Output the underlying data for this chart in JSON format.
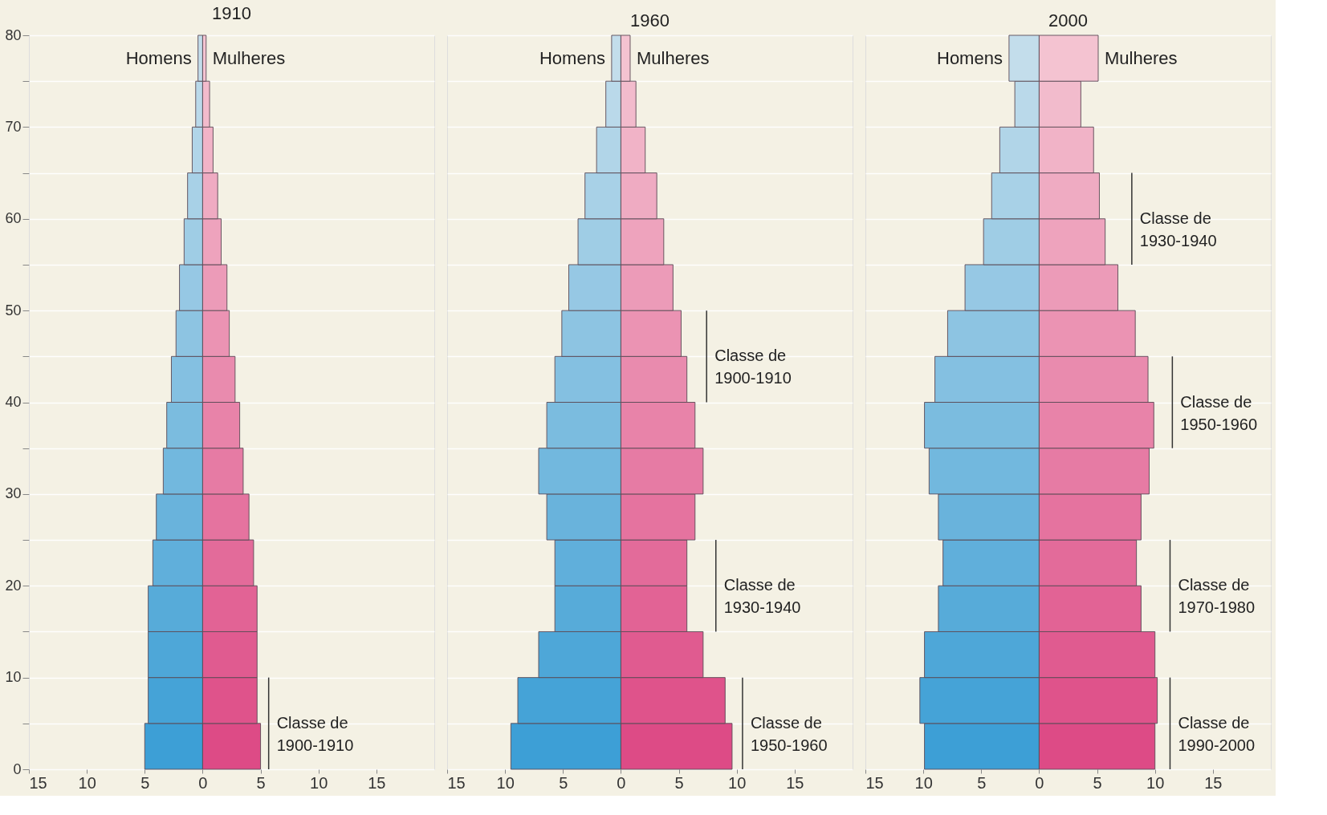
{
  "chart_data": [
    {
      "type": "bar",
      "orientation": "horizontal",
      "title": "1910",
      "x": [
        2.5,
        7.5,
        12.5,
        17.5,
        22.5,
        27.5,
        32.5,
        37.5,
        42.5,
        47.5,
        52.5,
        57.5,
        62.5,
        67.5,
        72.5,
        77.5
      ],
      "series": [
        {
          "name": "Homens",
          "colors": [
            "#3d9fd6",
            "#45a3d7",
            "#4ea7d8",
            "#57abd9",
            "#60afdb",
            "#69b3dc",
            "#72b8de",
            "#7bbcdf",
            "#84c0e1",
            "#8dc4e2",
            "#96c8e4",
            "#9fcde5",
            "#a8d1e7",
            "#b1d5e8",
            "#bad9ea",
            "#c3ddeb"
          ],
          "values": [
            -5.0,
            -4.7,
            -4.7,
            -4.7,
            -4.3,
            -4.0,
            -3.4,
            -3.1,
            -2.7,
            -2.3,
            -2.0,
            -1.6,
            -1.3,
            -0.9,
            -0.6,
            -0.4
          ]
        },
        {
          "name": "Mulheres",
          "colors": [
            "#dd4b86",
            "#df538b",
            "#e05b90",
            "#e26395",
            "#e36b9a",
            "#e5739f",
            "#e67ba4",
            "#e883a9",
            "#e98bae",
            "#eb93b3",
            "#ec9bb8",
            "#eea3bd",
            "#efabc2",
            "#f1b3c7",
            "#f2bbcc",
            "#f4c3d1"
          ],
          "values": [
            5.0,
            4.7,
            4.7,
            4.7,
            4.4,
            4.0,
            3.5,
            3.2,
            2.8,
            2.3,
            2.1,
            1.6,
            1.3,
            0.9,
            0.6,
            0.3
          ]
        }
      ],
      "xlim": [
        -15,
        20
      ],
      "xticks": [
        {
          "value": -15,
          "label": "15"
        },
        {
          "value": -10,
          "label": "10"
        },
        {
          "value": -5,
          "label": "5"
        },
        0,
        5,
        10,
        15
      ],
      "ylim": [
        0,
        80
      ],
      "yticks": [
        0,
        {
          "value": 5,
          "label": null
        },
        10,
        {
          "value": 15,
          "label": null
        },
        20,
        {
          "value": 25,
          "label": null
        },
        30,
        {
          "value": 35,
          "label": null
        },
        40,
        {
          "value": 45,
          "label": null
        },
        50,
        {
          "value": 55,
          "label": null
        },
        60,
        {
          "value": 65,
          "label": null
        },
        70,
        {
          "value": 75,
          "label": null
        },
        80
      ],
      "grid": "y",
      "stacked": true,
      "annotations": [
        "Classe de\n1900-1910"
      ]
    },
    {
      "type": "bar",
      "orientation": "horizontal",
      "title": "1960",
      "x": [
        2.5,
        7.5,
        12.5,
        17.5,
        22.5,
        27.5,
        32.5,
        37.5,
        42.5,
        47.5,
        52.5,
        57.5,
        62.5,
        67.5,
        72.5,
        77.5
      ],
      "series": [
        {
          "name": "Homens",
          "colors": [
            "#3d9fd6",
            "#45a3d7",
            "#4ea7d8",
            "#57abd9",
            "#60afdb",
            "#69b3dc",
            "#72b8de",
            "#7bbcdf",
            "#84c0e1",
            "#8dc4e2",
            "#96c8e4",
            "#9fcde5",
            "#a8d1e7",
            "#b1d5e8",
            "#bad9ea",
            "#c3ddeb"
          ],
          "values": [
            -9.5,
            -8.9,
            -7.1,
            -5.7,
            -5.7,
            -6.4,
            -7.1,
            -6.4,
            -5.7,
            -5.1,
            -4.5,
            -3.7,
            -3.1,
            -2.1,
            -1.3,
            -0.8
          ]
        },
        {
          "name": "Mulheres",
          "colors": [
            "#dd4b86",
            "#df538b",
            "#e05b90",
            "#e26395",
            "#e36b9a",
            "#e5739f",
            "#e67ba4",
            "#e883a9",
            "#e98bae",
            "#eb93b3",
            "#ec9bb8",
            "#eea3bd",
            "#efabc2",
            "#f1b3c7",
            "#f2bbcc",
            "#f4c3d1"
          ],
          "values": [
            9.6,
            9.0,
            7.1,
            5.7,
            5.7,
            6.4,
            7.1,
            6.4,
            5.7,
            5.2,
            4.5,
            3.7,
            3.1,
            2.1,
            1.3,
            0.8
          ]
        }
      ],
      "xlim": [
        -15,
        20
      ],
      "xticks": [
        {
          "value": -15,
          "label": "15"
        },
        {
          "value": -10,
          "label": "10"
        },
        {
          "value": -5,
          "label": "5"
        },
        0,
        5,
        10,
        15
      ],
      "ylim": [
        0,
        80
      ],
      "yticks": [
        0,
        {
          "value": 5,
          "label": null
        },
        10,
        {
          "value": 15,
          "label": null
        },
        20,
        {
          "value": 25,
          "label": null
        },
        30,
        {
          "value": 35,
          "label": null
        },
        40,
        {
          "value": 45,
          "label": null
        },
        50,
        {
          "value": 55,
          "label": null
        },
        60,
        {
          "value": 65,
          "label": null
        },
        70,
        {
          "value": 75,
          "label": null
        },
        80
      ],
      "grid": "y",
      "tick_labels": "x",
      "stacked": true,
      "annotations": [
        "Classe de\n1900-1910",
        "Classe de\n1930-1940",
        "Classe de\n1950-1960"
      ]
    },
    {
      "type": "bar",
      "orientation": "horizontal",
      "title": "2000",
      "x": [
        2.5,
        7.5,
        12.5,
        17.5,
        22.5,
        27.5,
        32.5,
        37.5,
        42.5,
        47.5,
        52.5,
        57.5,
        62.5,
        67.5,
        72.5,
        77.5
      ],
      "series": [
        {
          "name": "Homens",
          "colors": [
            "#3d9fd6",
            "#45a3d7",
            "#4ea7d8",
            "#57abd9",
            "#60afdb",
            "#69b3dc",
            "#72b8de",
            "#7bbcdf",
            "#84c0e1",
            "#8dc4e2",
            "#96c8e4",
            "#9fcde5",
            "#a8d1e7",
            "#b1d5e8",
            "#bad9ea",
            "#c3ddeb"
          ],
          "values": [
            -9.9,
            -10.3,
            -9.9,
            -8.7,
            -8.3,
            -8.7,
            -9.5,
            -9.9,
            -9.0,
            -7.9,
            -6.4,
            -4.8,
            -4.1,
            -3.4,
            -2.1,
            -2.6
          ]
        },
        {
          "name": "Mulheres",
          "colors": [
            "#dd4b86",
            "#df538b",
            "#e05b90",
            "#e26395",
            "#e36b9a",
            "#e5739f",
            "#e67ba4",
            "#e883a9",
            "#e98bae",
            "#eb93b3",
            "#ec9bb8",
            "#eea3bd",
            "#efabc2",
            "#f1b3c7",
            "#f2bbcc",
            "#f4c3d1"
          ],
          "values": [
            10.0,
            10.2,
            10.0,
            8.8,
            8.4,
            8.8,
            9.5,
            9.9,
            9.4,
            8.3,
            6.8,
            5.7,
            5.2,
            4.7,
            3.6,
            5.1
          ]
        }
      ],
      "xlim": [
        -15,
        20
      ],
      "xticks": [
        {
          "value": -15,
          "label": "15"
        },
        {
          "value": -10,
          "label": "10"
        },
        {
          "value": -5,
          "label": "5"
        },
        0,
        5,
        10,
        15
      ],
      "ylim": [
        0,
        80
      ],
      "yticks": [
        0,
        {
          "value": 5,
          "label": null
        },
        10,
        {
          "value": 15,
          "label": null
        },
        20,
        {
          "value": 25,
          "label": null
        },
        30,
        {
          "value": 35,
          "label": null
        },
        40,
        {
          "value": 45,
          "label": null
        },
        50,
        {
          "value": 55,
          "label": null
        },
        60,
        {
          "value": 65,
          "label": null
        },
        70,
        {
          "value": 75,
          "label": null
        },
        80
      ],
      "grid": "y",
      "tick_labels": "x",
      "stacked": true,
      "annotations": [
        "Classe de\n1930-1940",
        "Classe de\n1950-1960",
        "Classe de\n1970-1980",
        "Classe de\n1990-2000"
      ]
    }
  ]
}
